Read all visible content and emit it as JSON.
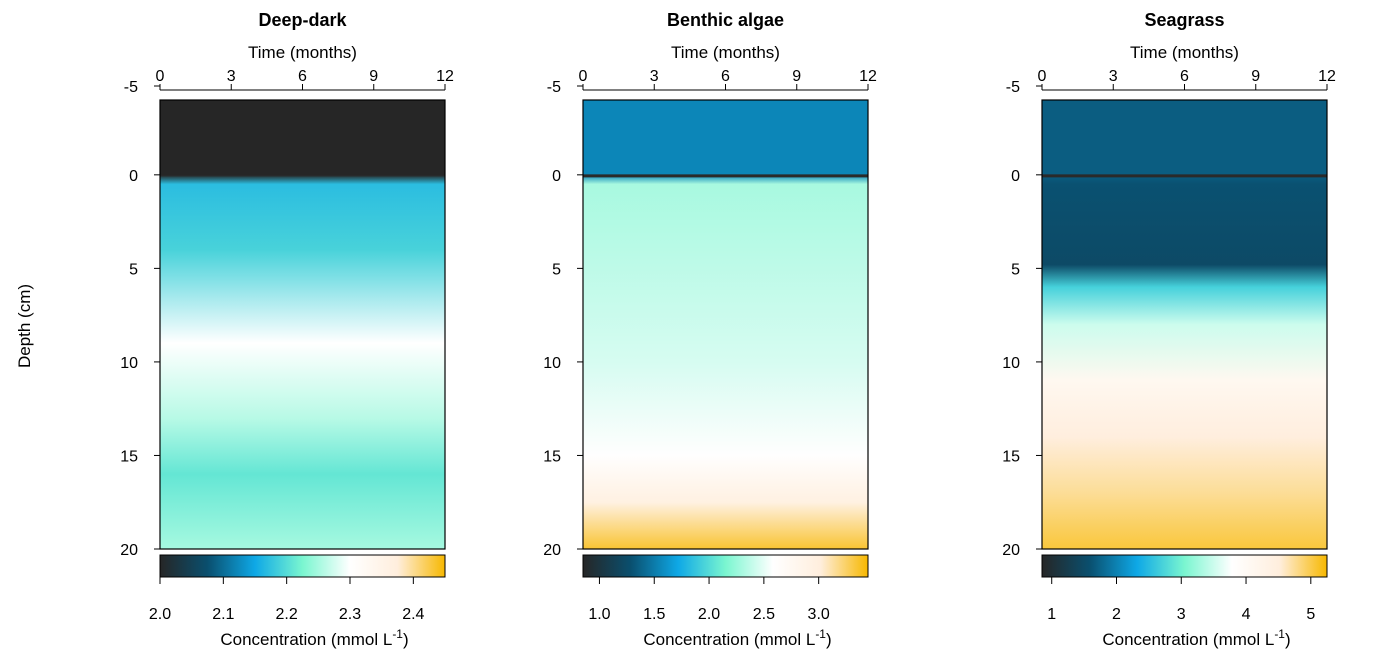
{
  "figure": {
    "ylabel": "Depth (cm)"
  },
  "colors": {
    "palette": [
      "#262626",
      "#0a4f6e",
      "#0ea8e6",
      "#7af6d0",
      "#ffffff",
      "#ffeedd",
      "#f7b800"
    ]
  },
  "chart_data": [
    {
      "type": "heatmap",
      "title": "Deep-dark",
      "xlabel": "Time (months)",
      "xticks": [
        "0",
        "3",
        "6",
        "9",
        "12"
      ],
      "xlim": [
        0,
        12
      ],
      "yticks": [
        "-5",
        "0",
        "5",
        "10",
        "15",
        "20"
      ],
      "ylim": [
        -5,
        20
      ],
      "colorbar_label": "Concentration (mmol L",
      "colorbar_sup": "-1",
      "colorbar_close": ")",
      "colorbar_ticks": [
        "2.0",
        "2.1",
        "2.2",
        "2.3",
        "2.4"
      ],
      "colorbar_range": [
        2.0,
        2.45
      ],
      "depth_profile": [
        {
          "depth": -4,
          "value": 2.0
        },
        {
          "depth": 0,
          "value": 2.0
        },
        {
          "depth": 0.5,
          "value": 2.17
        },
        {
          "depth": 4,
          "value": 2.19
        },
        {
          "depth": 9,
          "value": 2.3
        },
        {
          "depth": 13,
          "value": 2.26
        },
        {
          "depth": 16,
          "value": 2.21
        },
        {
          "depth": 20,
          "value": 2.25
        }
      ]
    },
    {
      "type": "heatmap",
      "title": "Benthic algae",
      "xlabel": "Time (months)",
      "xticks": [
        "0",
        "3",
        "6",
        "9",
        "12"
      ],
      "xlim": [
        0,
        12
      ],
      "yticks": [
        "-5",
        "0",
        "5",
        "10",
        "15",
        "20"
      ],
      "ylim": [
        -5,
        20
      ],
      "colorbar_label": "Concentration (mmol L",
      "colorbar_sup": "-1",
      "colorbar_close": ")",
      "colorbar_ticks": [
        "1.0",
        "1.5",
        "2.0",
        "2.5",
        "3.0"
      ],
      "colorbar_range": [
        0.85,
        3.45
      ],
      "depth_profile": [
        {
          "depth": -4,
          "value": 1.55
        },
        {
          "depth": 0,
          "value": 1.55
        },
        {
          "depth": 0.5,
          "value": 2.3
        },
        {
          "depth": 10,
          "value": 2.45
        },
        {
          "depth": 15,
          "value": 2.6
        },
        {
          "depth": 17.5,
          "value": 2.95
        },
        {
          "depth": 20,
          "value": 3.35
        }
      ]
    },
    {
      "type": "heatmap",
      "title": "Seagrass",
      "xlabel": "Time (months)",
      "xticks": [
        "0",
        "3",
        "6",
        "9",
        "12"
      ],
      "xlim": [
        0,
        12
      ],
      "yticks": [
        "-5",
        "0",
        "5",
        "10",
        "15",
        "20"
      ],
      "ylim": [
        -5,
        20
      ],
      "colorbar_label": "Concentration (mmol L",
      "colorbar_sup": "-1",
      "colorbar_close": ")",
      "colorbar_ticks": [
        "1",
        "2",
        "3",
        "4",
        "5"
      ],
      "colorbar_range": [
        0.85,
        5.25
      ],
      "depth_profile": [
        {
          "depth": -4,
          "value": 1.7
        },
        {
          "depth": 0,
          "value": 1.7
        },
        {
          "depth": 0.5,
          "value": 1.6
        },
        {
          "depth": 4.8,
          "value": 1.5
        },
        {
          "depth": 6,
          "value": 2.7
        },
        {
          "depth": 8,
          "value": 3.5
        },
        {
          "depth": 11,
          "value": 4.1
        },
        {
          "depth": 14,
          "value": 4.5
        },
        {
          "depth": 17,
          "value": 4.75
        },
        {
          "depth": 20,
          "value": 5.05
        }
      ]
    }
  ]
}
